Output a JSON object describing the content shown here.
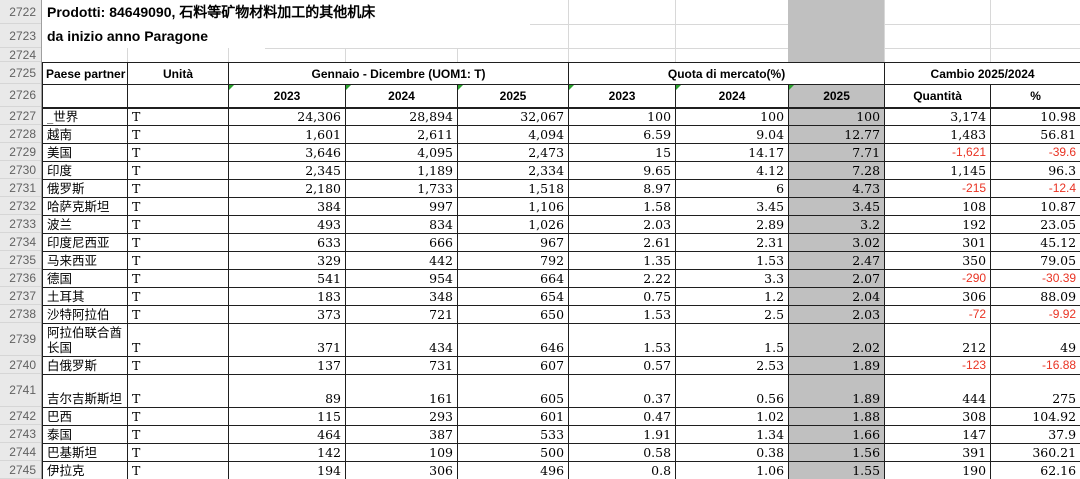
{
  "titles": {
    "product_line": "Prodotti: 84649090, 石料等矿物材料加工的其他机床",
    "period_line": "da inizio anno Paragone"
  },
  "row_numbers": [
    "2722",
    "2723",
    "2724",
    "2725",
    "2726",
    "2727",
    "2728",
    "2729",
    "2730",
    "2731",
    "2732",
    "2733",
    "2734",
    "2735",
    "2736",
    "2737",
    "2738",
    "2739",
    "2740",
    "2741",
    "2742",
    "2743",
    "2744",
    "2745"
  ],
  "table": {
    "header_groups": {
      "paese": "Paese partner",
      "unita": "Unità",
      "gennaio": "Gennaio - Dicembre (UOM1: T)",
      "quota": "Quota di mercato(%)",
      "cambio": "Cambio 2025/2024"
    },
    "sub_headers": [
      "2023",
      "2024",
      "2025",
      "2023",
      "2024",
      "2025",
      "Quantità",
      "%"
    ],
    "tall_rows": [
      12,
      14
    ],
    "rows": [
      [
        "_世界",
        "T",
        "24,306",
        "28,894",
        "32,067",
        "100",
        "100",
        "100",
        "3,174",
        "10.98"
      ],
      [
        "越南",
        "T",
        "1,601",
        "2,611",
        "4,094",
        "6.59",
        "9.04",
        "12.77",
        "1,483",
        "56.81"
      ],
      [
        "美国",
        "T",
        "3,646",
        "4,095",
        "2,473",
        "15",
        "14.17",
        "7.71",
        "-1,621",
        "-39.6"
      ],
      [
        "印度",
        "T",
        "2,345",
        "1,189",
        "2,334",
        "9.65",
        "4.12",
        "7.28",
        "1,145",
        "96.3"
      ],
      [
        "俄罗斯",
        "T",
        "2,180",
        "1,733",
        "1,518",
        "8.97",
        "6",
        "4.73",
        "-215",
        "-12.4"
      ],
      [
        "哈萨克斯坦",
        "T",
        "384",
        "997",
        "1,106",
        "1.58",
        "3.45",
        "3.45",
        "108",
        "10.87"
      ],
      [
        "波兰",
        "T",
        "493",
        "834",
        "1,026",
        "2.03",
        "2.89",
        "3.2",
        "192",
        "23.05"
      ],
      [
        "印度尼西亚",
        "T",
        "633",
        "666",
        "967",
        "2.61",
        "2.31",
        "3.02",
        "301",
        "45.12"
      ],
      [
        "马来西亚",
        "T",
        "329",
        "442",
        "792",
        "1.35",
        "1.53",
        "2.47",
        "350",
        "79.05"
      ],
      [
        "德国",
        "T",
        "541",
        "954",
        "664",
        "2.22",
        "3.3",
        "2.07",
        "-290",
        "-30.39"
      ],
      [
        "土耳其",
        "T",
        "183",
        "348",
        "654",
        "0.75",
        "1.2",
        "2.04",
        "306",
        "88.09"
      ],
      [
        "沙特阿拉伯",
        "T",
        "373",
        "721",
        "650",
        "1.53",
        "2.5",
        "2.03",
        "-72",
        "-9.92"
      ],
      [
        "阿拉伯联合酋长国",
        "T",
        "371",
        "434",
        "646",
        "1.53",
        "1.5",
        "2.02",
        "212",
        "49"
      ],
      [
        "白俄罗斯",
        "T",
        "137",
        "731",
        "607",
        "0.57",
        "2.53",
        "1.89",
        "-123",
        "-16.88"
      ],
      [
        "吉尔吉斯斯坦",
        "T",
        "89",
        "161",
        "605",
        "0.37",
        "0.56",
        "1.89",
        "444",
        "275"
      ],
      [
        "巴西",
        "T",
        "115",
        "293",
        "601",
        "0.47",
        "1.02",
        "1.88",
        "308",
        "104.92"
      ],
      [
        "泰国",
        "T",
        "464",
        "387",
        "533",
        "1.91",
        "1.34",
        "1.66",
        "147",
        "37.9"
      ],
      [
        "巴基斯坦",
        "T",
        "142",
        "109",
        "500",
        "0.58",
        "0.38",
        "1.56",
        "391",
        "360.21"
      ],
      [
        "伊拉克",
        "T",
        "194",
        "306",
        "496",
        "0.8",
        "1.06",
        "1.55",
        "190",
        "62.16"
      ]
    ]
  },
  "colors": {
    "highlight_gray": "#c0c0c0",
    "negative_red": "#e93323",
    "indicator_green": "#2aa12e"
  }
}
